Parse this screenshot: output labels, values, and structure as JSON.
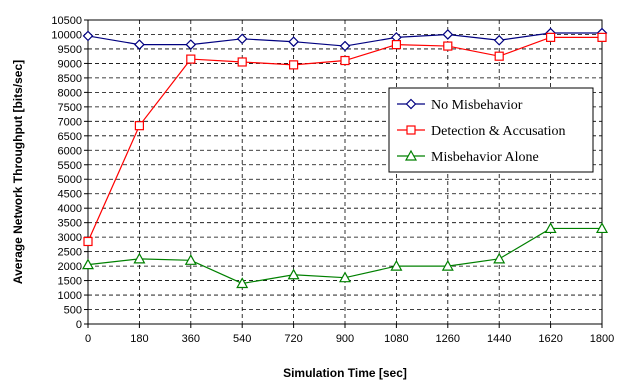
{
  "chart_data": {
    "type": "line",
    "xlabel": "Simulation Time [sec]",
    "ylabel": "Average Network Throughput [bits/sec]",
    "x": [
      0,
      180,
      360,
      540,
      720,
      900,
      1080,
      1260,
      1440,
      1620,
      1800
    ],
    "xlim": [
      0,
      1800
    ],
    "ylim": [
      0,
      10500
    ],
    "xticks": [
      "0",
      "180",
      "360",
      "540",
      "720",
      "900",
      "1080",
      "1260",
      "1440",
      "1620",
      "1800"
    ],
    "yticks": [
      "0",
      "500",
      "1000",
      "1500",
      "2000",
      "2500",
      "3000",
      "3500",
      "4000",
      "4500",
      "5000",
      "5500",
      "6000",
      "6500",
      "7000",
      "7500",
      "8000",
      "8500",
      "9000",
      "9500",
      "10000",
      "10500"
    ],
    "grid": true,
    "legend_position": "right",
    "series": [
      {
        "name": "No Misbehavior",
        "color": "#000080",
        "marker": "diamond",
        "values": [
          9950,
          9650,
          9650,
          9850,
          9750,
          9600,
          9900,
          10000,
          9800,
          10050,
          10050
        ]
      },
      {
        "name": "Detection & Accusation",
        "color": "#ff0000",
        "marker": "square",
        "values": [
          2850,
          6850,
          9150,
          9050,
          8950,
          9100,
          9650,
          9600,
          9250,
          9900,
          9900
        ]
      },
      {
        "name": "Misbehavior Alone",
        "color": "#008000",
        "marker": "triangle",
        "values": [
          2050,
          2250,
          2200,
          1400,
          1700,
          1600,
          2000,
          2000,
          2250,
          3300,
          3300
        ]
      }
    ]
  }
}
